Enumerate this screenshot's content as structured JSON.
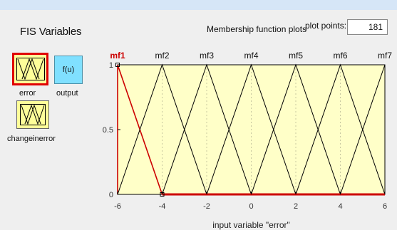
{
  "panel": {
    "title": "FIS Variables"
  },
  "variables": {
    "input1": {
      "name": "error"
    },
    "output": {
      "name": "output",
      "icon_text": "f(u)"
    },
    "input2": {
      "name": "changeinerror"
    }
  },
  "plot_header": {
    "title": "Membership function plots",
    "plot_points_label": "plot points:",
    "plot_points_value": "181"
  },
  "chart_data": {
    "type": "line",
    "xlabel": "input variable \"error\"",
    "xlim": [
      -6,
      6
    ],
    "ylim": [
      0,
      1
    ],
    "x_ticks": [
      "-6",
      "-4",
      "-2",
      "0",
      "2",
      "4",
      "6"
    ],
    "y_ticks": [
      "0",
      "0.5",
      "1"
    ],
    "series": [
      {
        "name": "mf1",
        "x": [
          -6,
          -6,
          -4
        ],
        "y": [
          0,
          1,
          0
        ],
        "selected": true
      },
      {
        "name": "mf2",
        "x": [
          -6,
          -4,
          -2
        ],
        "y": [
          0,
          1,
          0
        ]
      },
      {
        "name": "mf3",
        "x": [
          -4,
          -2,
          0
        ],
        "y": [
          0,
          1,
          0
        ]
      },
      {
        "name": "mf4",
        "x": [
          -2,
          0,
          2
        ],
        "y": [
          0,
          1,
          0
        ]
      },
      {
        "name": "mf5",
        "x": [
          0,
          2,
          4
        ],
        "y": [
          0,
          1,
          0
        ]
      },
      {
        "name": "mf6",
        "x": [
          2,
          4,
          6
        ],
        "y": [
          0,
          1,
          0
        ]
      },
      {
        "name": "mf7",
        "x": [
          4,
          6,
          6
        ],
        "y": [
          0,
          1,
          0
        ]
      }
    ]
  },
  "colors": {
    "plot_bg": "#ffffc8",
    "selected_mf": "#cc0000",
    "mf_line": "#000000",
    "selected_var_border": "#e00000"
  }
}
